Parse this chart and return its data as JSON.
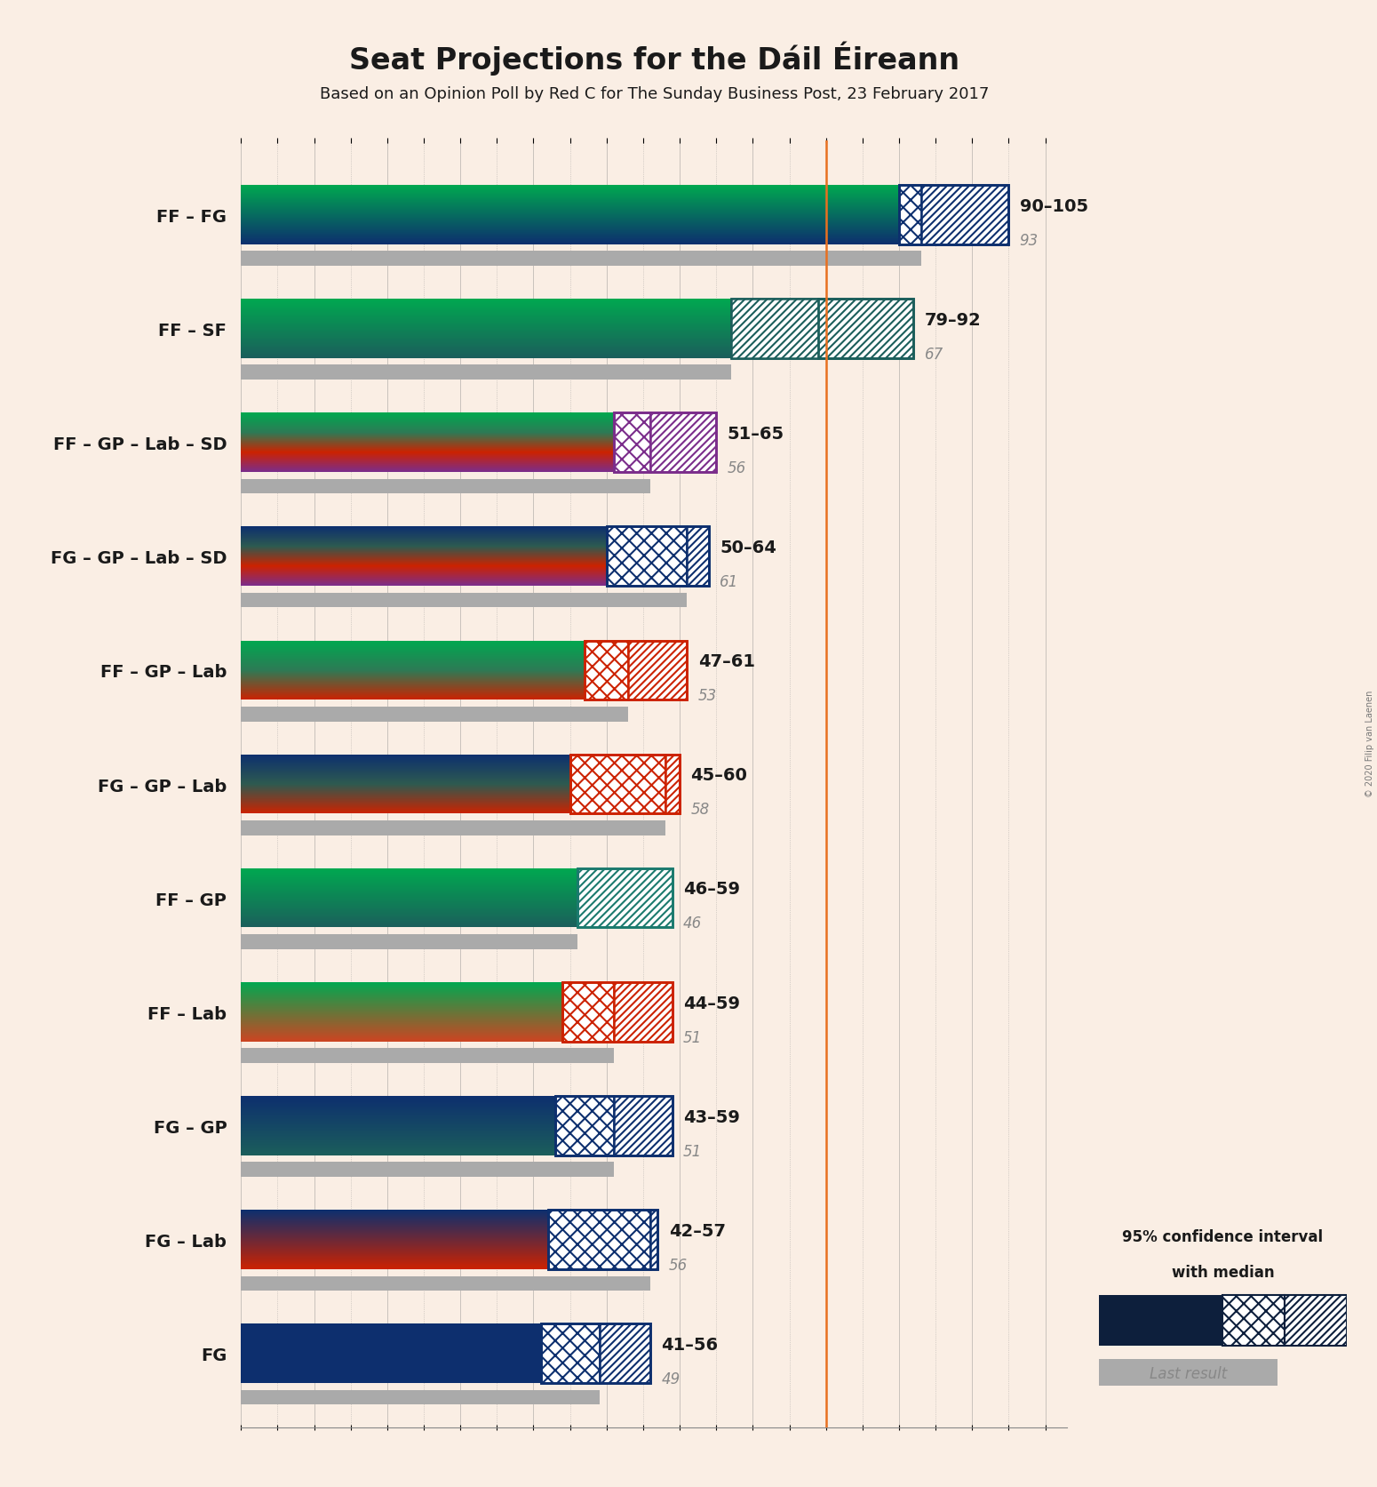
{
  "title": "Seat Projections for the Dáil Éireann",
  "subtitle": "Based on an Opinion Poll by Red C for The Sunday Business Post, 23 February 2017",
  "copyright": "© 2020 Filip van Laenen",
  "background_color": "#faeee4",
  "majority_line": 80,
  "x_max": 113,
  "grid_step": 5,
  "coalitions": [
    {
      "label": "FF – FG",
      "median": 93,
      "low": 90,
      "high": 105,
      "last_result": 93,
      "colors": [
        "#00a850",
        "#0d2f6e"
      ],
      "border_color": "#0d2f6e"
    },
    {
      "label": "FF – SF",
      "median": 67,
      "low": 79,
      "high": 92,
      "last_result": 67,
      "colors": [
        "#00a850",
        "#1b5e5b"
      ],
      "border_color": "#1b5e5b"
    },
    {
      "label": "FF – GP – Lab – SD",
      "median": 56,
      "low": 51,
      "high": 65,
      "last_result": 56,
      "colors": [
        "#00a850",
        "#2d7a55",
        "#cc2200",
        "#7b2d8b"
      ],
      "border_color": "#7b2d8b"
    },
    {
      "label": "FG – GP – Lab – SD",
      "median": 61,
      "low": 50,
      "high": 64,
      "last_result": 61,
      "colors": [
        "#0d2f6e",
        "#2d5a50",
        "#cc2200",
        "#7b2d8b"
      ],
      "border_color": "#0d2f6e"
    },
    {
      "label": "FF – GP – Lab",
      "median": 53,
      "low": 47,
      "high": 61,
      "last_result": 53,
      "colors": [
        "#00a850",
        "#2d7a55",
        "#cc2200"
      ],
      "border_color": "#cc2200"
    },
    {
      "label": "FG – GP – Lab",
      "median": 58,
      "low": 45,
      "high": 60,
      "last_result": 58,
      "colors": [
        "#0d2f6e",
        "#2d5a50",
        "#cc2200"
      ],
      "border_color": "#cc2200"
    },
    {
      "label": "FF – GP",
      "median": 46,
      "low": 46,
      "high": 59,
      "last_result": 46,
      "colors": [
        "#00a850",
        "#1b5e5b"
      ],
      "border_color": "#1b7a6e"
    },
    {
      "label": "FF – Lab",
      "median": 51,
      "low": 44,
      "high": 59,
      "last_result": 51,
      "colors": [
        "#00a850",
        "#cc4422"
      ],
      "border_color": "#cc2200"
    },
    {
      "label": "FG – GP",
      "median": 51,
      "low": 43,
      "high": 59,
      "last_result": 51,
      "colors": [
        "#0d2f6e",
        "#1b5e5b"
      ],
      "border_color": "#0d2f6e"
    },
    {
      "label": "FG – Lab",
      "median": 56,
      "low": 42,
      "high": 57,
      "last_result": 56,
      "colors": [
        "#0d2f6e",
        "#cc2200"
      ],
      "border_color": "#0d2f6e"
    },
    {
      "label": "FG",
      "median": 49,
      "low": 41,
      "high": 56,
      "last_result": 49,
      "colors": [
        "#0d2f6e"
      ],
      "border_color": "#0d2f6e"
    }
  ]
}
